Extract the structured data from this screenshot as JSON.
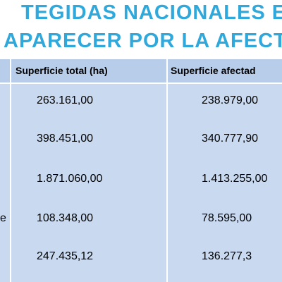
{
  "title": {
    "line1": "TEGIDAS NACIONALES EN P",
    "line2": "APARECER POR LA AFECTAC"
  },
  "table": {
    "headers": [
      "Superficie  total (ha)",
      "Superficie afectad"
    ],
    "row_fragment": "e",
    "rows": [
      {
        "total": "263.161,00",
        "afectada": "238.979,00"
      },
      {
        "total": "398.451,00",
        "afectada": "340.777,90"
      },
      {
        "total": "1.871.060,00",
        "afectada": "1.413.255,00"
      },
      {
        "total": "108.348,00",
        "afectada": "78.595,00"
      },
      {
        "total": "247.435,12",
        "afectada": "136.277,3"
      }
    ]
  }
}
